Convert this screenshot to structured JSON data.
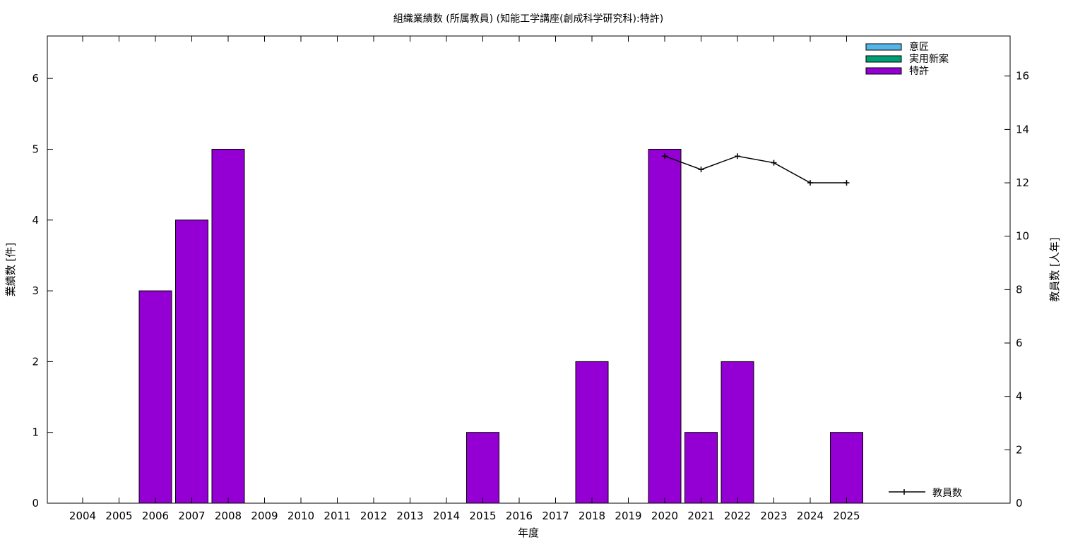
{
  "chart_data": {
    "type": "bar",
    "title": "組織業績数 (所属教員) (知能工学講座(創成科学研究科):特許)",
    "xlabel": "年度",
    "ylabel": "業績数 [件]",
    "y2label": "教員数 [人年]",
    "categories": [
      "2004",
      "2005",
      "2006",
      "2007",
      "2008",
      "2009",
      "2010",
      "2011",
      "2012",
      "2013",
      "2014",
      "2015",
      "2016",
      "2017",
      "2018",
      "2019",
      "2020",
      "2021",
      "2022",
      "2023",
      "2024",
      "2025"
    ],
    "ylim": [
      0,
      6.6
    ],
    "yticks": [
      "0",
      "1",
      "2",
      "3",
      "4",
      "5",
      "6"
    ],
    "y2lim": [
      0,
      17.5
    ],
    "y2ticks": [
      "0",
      "2",
      "4",
      "6",
      "8",
      "10",
      "12",
      "14",
      "16"
    ],
    "grid": false,
    "legend_position": "top-right",
    "series": [
      {
        "name": "意匠",
        "color": "#56b4e9",
        "values": [
          0,
          0,
          0,
          0,
          0,
          0,
          0,
          0,
          0,
          0,
          0,
          0,
          0,
          0,
          0,
          0,
          0,
          0,
          0,
          0,
          0,
          0
        ]
      },
      {
        "name": "実用新案",
        "color": "#009e73",
        "values": [
          0,
          0,
          0,
          0,
          0,
          0,
          0,
          0,
          0,
          0,
          0,
          0,
          0,
          0,
          0,
          0,
          0,
          0,
          0,
          0,
          0,
          0
        ]
      },
      {
        "name": "特許",
        "color": "#9400d3",
        "values": [
          0,
          0,
          3,
          4,
          5,
          0,
          0,
          0,
          0,
          0,
          0,
          1,
          0,
          0,
          2,
          0,
          5,
          1,
          2,
          0,
          0,
          1
        ]
      }
    ],
    "line_series": {
      "name": "教員数",
      "color": "#000000",
      "axis": "y2",
      "x": [
        "2020",
        "2021",
        "2022",
        "2023",
        "2024",
        "2025"
      ],
      "values": [
        13,
        12.5,
        13,
        12.75,
        12,
        12
      ]
    }
  }
}
